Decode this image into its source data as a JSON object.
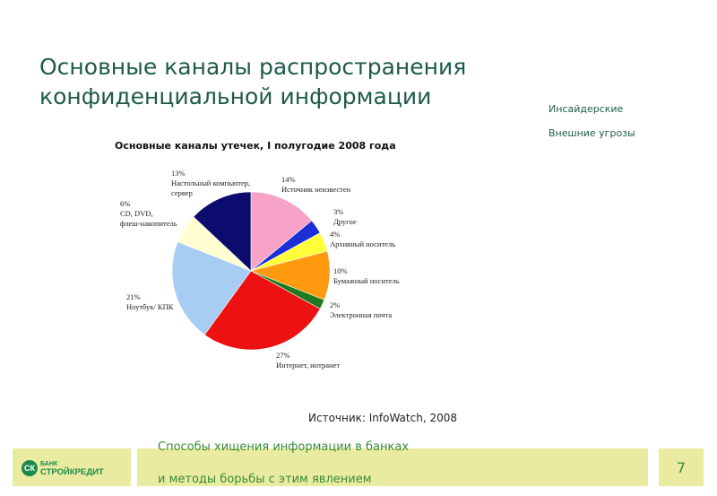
{
  "slide": {
    "title_line1": "Основные каналы распространения",
    "title_line2": "конфиденциальной информации",
    "side_labels": [
      "Инсайдерские",
      "Внешние угрозы"
    ],
    "source": "Источник: InfoWatch, 2008",
    "page_number": "7"
  },
  "logo": {
    "line1": "БАНК",
    "line2": "СТРОЙКРЕДИТ",
    "mark": "СК"
  },
  "footer": {
    "line1": "Способы хищения информации в банках",
    "line2": "и методы борьбы с этим явлением"
  },
  "chart_data": {
    "type": "pie",
    "title": "Основные каналы утечек, I полугодие 2008 года",
    "slices": [
      {
        "name": "Источник неизвестен",
        "value": 14,
        "label_pct": "14%",
        "color": "#f7a3c8"
      },
      {
        "name": "Другое",
        "value": 3,
        "label_pct": "3%",
        "color": "#1a2fd6"
      },
      {
        "name": "Архивный носитель",
        "value": 4,
        "label_pct": "4%",
        "color": "#ffff3a"
      },
      {
        "name": "Бумажный носитель",
        "value": 10,
        "label_pct": "10%",
        "color": "#ff9a10"
      },
      {
        "name": "Электронная почта",
        "value": 2,
        "label_pct": "2%",
        "color": "#1f7a1f"
      },
      {
        "name": "Интернет, интранет",
        "value": 27,
        "label_pct": "27%",
        "color": "#ee1111"
      },
      {
        "name": "Ноутбук/ КПК",
        "value": 21,
        "label_pct": "21%",
        "color": "#a8cdf4"
      },
      {
        "name": "CD, DVD, флеш-накопитель",
        "value": 6,
        "label_pct": "6%",
        "color": "#ffffd2"
      },
      {
        "name": "Настольный компьютер, сервер",
        "value": 13,
        "label_pct": "13%",
        "color": "#0c0c6e"
      }
    ],
    "labels": [
      {
        "lines": [
          "14%",
          "Источник неизвестен"
        ]
      },
      {
        "lines": [
          "3%",
          "Другое"
        ]
      },
      {
        "lines": [
          "4%",
          "Архивный носитель"
        ]
      },
      {
        "lines": [
          "10%",
          "Бумажный носитель"
        ]
      },
      {
        "lines": [
          "2%",
          "Электронная почта"
        ]
      },
      {
        "lines": [
          "27%",
          "Интернет, интранет"
        ]
      },
      {
        "lines": [
          "21%",
          "Ноутбук/ КПК"
        ]
      },
      {
        "lines": [
          "6%",
          "CD, DVD,",
          "флеш-накопитель"
        ]
      },
      {
        "lines": [
          "13%",
          "Настольный компьютер,",
          "сервер"
        ]
      }
    ]
  }
}
